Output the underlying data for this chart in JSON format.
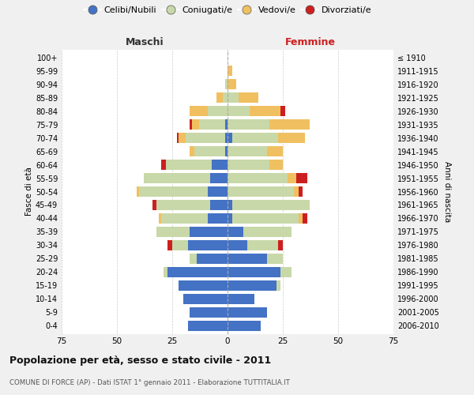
{
  "age_groups": [
    "100+",
    "95-99",
    "90-94",
    "85-89",
    "80-84",
    "75-79",
    "70-74",
    "65-69",
    "60-64",
    "55-59",
    "50-54",
    "45-49",
    "40-44",
    "35-39",
    "30-34",
    "25-29",
    "20-24",
    "15-19",
    "10-14",
    "5-9",
    "0-4"
  ],
  "birth_years": [
    "≤ 1910",
    "1911-1915",
    "1916-1920",
    "1921-1925",
    "1926-1930",
    "1931-1935",
    "1936-1940",
    "1941-1945",
    "1946-1950",
    "1951-1955",
    "1956-1960",
    "1961-1965",
    "1966-1970",
    "1971-1975",
    "1976-1980",
    "1981-1985",
    "1986-1990",
    "1991-1995",
    "1996-2000",
    "2001-2005",
    "2006-2010"
  ],
  "maschi": {
    "celibi": [
      0,
      0,
      0,
      0,
      0,
      1,
      1,
      1,
      7,
      8,
      9,
      8,
      9,
      17,
      18,
      14,
      27,
      22,
      20,
      17,
      18
    ],
    "coniugati": [
      0,
      0,
      1,
      2,
      9,
      12,
      18,
      14,
      21,
      30,
      31,
      24,
      21,
      15,
      7,
      3,
      2,
      0,
      0,
      0,
      0
    ],
    "vedovi": [
      0,
      0,
      0,
      3,
      8,
      3,
      3,
      2,
      0,
      0,
      1,
      0,
      1,
      0,
      0,
      0,
      0,
      0,
      0,
      0,
      0
    ],
    "divorziati": [
      0,
      0,
      0,
      0,
      0,
      1,
      1,
      0,
      2,
      0,
      0,
      2,
      0,
      0,
      2,
      0,
      0,
      0,
      0,
      0,
      0
    ]
  },
  "femmine": {
    "nubili": [
      0,
      0,
      0,
      0,
      0,
      0,
      2,
      0,
      0,
      0,
      0,
      2,
      2,
      7,
      9,
      18,
      24,
      22,
      12,
      18,
      15
    ],
    "coniugate": [
      0,
      0,
      0,
      5,
      10,
      19,
      21,
      18,
      19,
      27,
      30,
      35,
      30,
      22,
      14,
      7,
      5,
      2,
      0,
      0,
      0
    ],
    "vedove": [
      0,
      2,
      4,
      9,
      14,
      18,
      12,
      7,
      6,
      4,
      2,
      0,
      2,
      0,
      0,
      0,
      0,
      0,
      0,
      0,
      0
    ],
    "divorziate": [
      0,
      0,
      0,
      0,
      2,
      0,
      0,
      0,
      0,
      5,
      2,
      0,
      2,
      0,
      2,
      0,
      0,
      0,
      0,
      0,
      0
    ]
  },
  "colors": {
    "celibi": "#4472c4",
    "coniugati": "#c8d8a8",
    "vedovi": "#f0c060",
    "divorziati": "#cc2020"
  },
  "xlim": 75,
  "title": "Popolazione per età, sesso e stato civile - 2011",
  "subtitle": "COMUNE DI FORCE (AP) - Dati ISTAT 1° gennaio 2011 - Elaborazione TUTTITALIA.IT",
  "ylabel_left": "Fasce di età",
  "ylabel_right": "Anni di nascita",
  "xlabel_maschi": "Maschi",
  "xlabel_femmine": "Femmine",
  "legend_labels": [
    "Celibi/Nubili",
    "Coniugati/e",
    "Vedovi/e",
    "Divorziati/e"
  ],
  "bg_color": "#f0f0f0",
  "plot_bg_color": "#ffffff"
}
